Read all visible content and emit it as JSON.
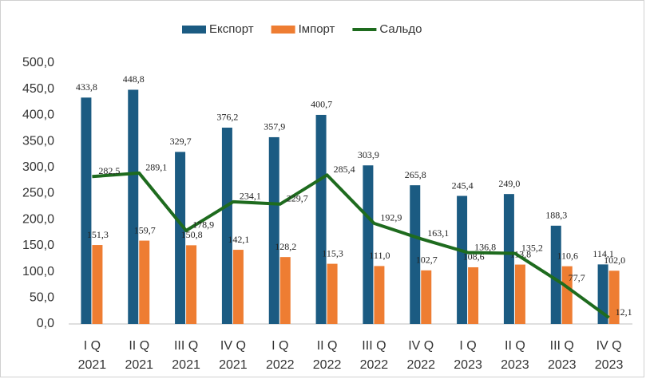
{
  "chart_data": {
    "type": "bar-line",
    "categories": [
      [
        "I Q",
        "2021"
      ],
      [
        "II Q",
        "2021"
      ],
      [
        "III Q",
        "2021"
      ],
      [
        "IV Q",
        "2021"
      ],
      [
        "I Q",
        "2022"
      ],
      [
        "II Q",
        "2022"
      ],
      [
        "III Q",
        "2022"
      ],
      [
        "IV Q",
        "2022"
      ],
      [
        "I Q",
        "2023"
      ],
      [
        "II Q",
        "2023"
      ],
      [
        "III Q",
        "2023"
      ],
      [
        "IV Q",
        "2023"
      ]
    ],
    "series": [
      {
        "name": "Експорт",
        "type": "bar",
        "color": "#1b5b82",
        "values": [
          433.8,
          448.8,
          329.7,
          376.2,
          357.9,
          400.7,
          303.9,
          265.8,
          245.4,
          249.0,
          188.3,
          114.1
        ],
        "value_labels": [
          "433,8",
          "448,8",
          "329,7",
          "376,2",
          "357,9",
          "400,7",
          "303,9",
          "265,8",
          "245,4",
          "249,0",
          "188,3",
          "114,1"
        ]
      },
      {
        "name": "Імпорт",
        "type": "bar",
        "color": "#ee7d32",
        "values": [
          151.3,
          159.7,
          150.8,
          142.1,
          128.2,
          115.3,
          111.0,
          102.7,
          108.6,
          113.8,
          110.6,
          102.0
        ],
        "value_labels": [
          "151,3",
          "159,7",
          "150,8",
          "142,1",
          "128,2",
          "115,3",
          "111,0",
          "102,7",
          "108,6",
          "113,8",
          "110,6",
          "102,0"
        ]
      },
      {
        "name": "Сальдо",
        "type": "line",
        "color": "#1e6b1e",
        "values": [
          282.5,
          289.1,
          178.9,
          234.1,
          229.7,
          285.4,
          192.9,
          163.1,
          136.8,
          135.2,
          77.7,
          12.1
        ],
        "value_labels": [
          "282,5",
          "289,1",
          "178,9",
          "234,1",
          "229,7",
          "285,4",
          "192,9",
          "163,1",
          "136,8",
          "135,2",
          "77,7",
          "12,1"
        ]
      }
    ],
    "ylim": [
      0,
      500
    ],
    "yticks": [
      {
        "value": 0,
        "label": "0,0"
      },
      {
        "value": 50,
        "label": "50,0"
      },
      {
        "value": 100,
        "label": "100,0"
      },
      {
        "value": 150,
        "label": "150,0"
      },
      {
        "value": 200,
        "label": "200,0"
      },
      {
        "value": 250,
        "label": "250,0"
      },
      {
        "value": 300,
        "label": "300,0"
      },
      {
        "value": 350,
        "label": "350,0"
      },
      {
        "value": 400,
        "label": "400,0"
      },
      {
        "value": 450,
        "label": "450,0"
      },
      {
        "value": 500,
        "label": "500,0"
      }
    ],
    "grid": false,
    "legend": "top"
  }
}
